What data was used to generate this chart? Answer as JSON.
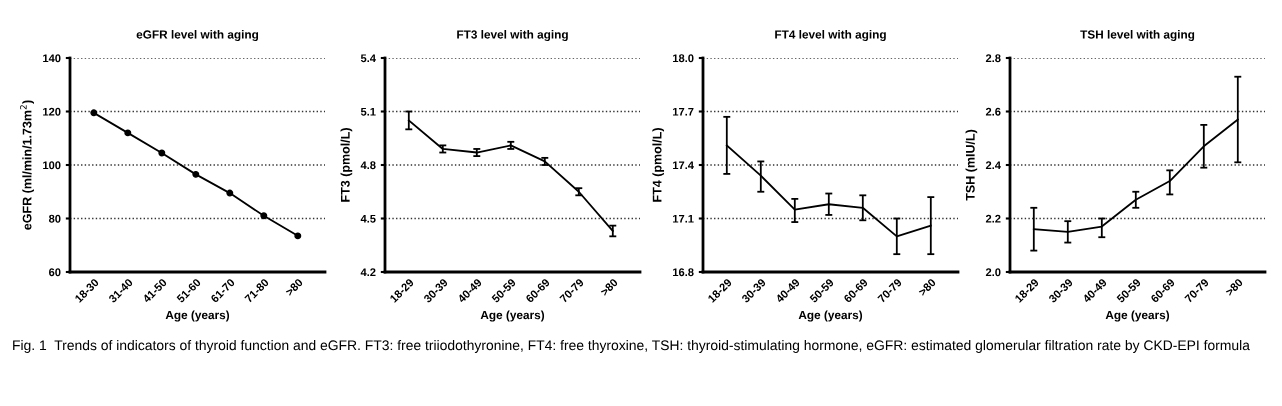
{
  "chart_data": [
    {
      "type": "line",
      "title": "eGFR level with aging",
      "xlabel": "Age (years)",
      "ylabel": "eGFR (ml/min/1.73m$^{2}$)",
      "categories": [
        "18-30",
        "31-40",
        "41-50",
        "51-60",
        "61-70",
        "71-80",
        ">80"
      ],
      "series": [
        {
          "color": "#000000",
          "values": [
            119.5,
            112,
            104.5,
            96.5,
            89.5,
            81,
            73.5
          ]
        }
      ],
      "marker": "circle",
      "ylim": [
        60,
        140
      ],
      "yticks": [
        60,
        80,
        100,
        120,
        140
      ],
      "grid": "y",
      "legend": false,
      "annotations": [
        "Fig. 1  Trends of indicators of thyroid function and eGFR. FT3: free triiodothyronine, FT4: free thyroxine, TSH: thyroid-stimulating hormone, eGFR: estimated glomerular filtration rate by CKD-EPI formula"
      ]
    },
    {
      "type": "line",
      "title": "FT3 level with aging",
      "xlabel": "Age (years)",
      "ylabel": "FT3 (pmol/L)",
      "categories": [
        "18-29",
        "30-39",
        "40-49",
        "50-59",
        "60-69",
        "70-79",
        ">80"
      ],
      "series": [
        {
          "color": "#000000",
          "values": [
            5.05,
            4.89,
            4.87,
            4.91,
            4.82,
            4.65,
            4.43
          ],
          "errors": [
            [
              5.0,
              5.1
            ],
            [
              4.87,
              4.91
            ],
            [
              4.85,
              4.89
            ],
            [
              4.89,
              4.93
            ],
            [
              4.8,
              4.84
            ],
            [
              4.63,
              4.67
            ],
            [
              4.4,
              4.46
            ]
          ]
        }
      ],
      "ylim": [
        4.2,
        5.4
      ],
      "yticks": [
        {
          "value": 4.2,
          "label": "4.2"
        },
        {
          "value": 4.5,
          "label": "4.5"
        },
        {
          "value": 4.8,
          "label": "4.8"
        },
        {
          "value": 5.1,
          "label": "5.1"
        },
        {
          "value": 5.4,
          "label": "5.4"
        }
      ],
      "grid": "y",
      "legend": false
    },
    {
      "type": "line",
      "title": "FT4 level with aging",
      "xlabel": "Age (years)",
      "ylabel": "FT4 (pmol/L)",
      "categories": [
        "18-29",
        "30-39",
        "40-49",
        "50-59",
        "60-69",
        "70-79",
        ">80"
      ],
      "series": [
        {
          "color": "#000000",
          "values": [
            17.51,
            17.34,
            17.15,
            17.18,
            17.16,
            17.0,
            17.06
          ],
          "errors": [
            [
              17.35,
              17.67
            ],
            [
              17.25,
              17.42
            ],
            [
              17.08,
              17.21
            ],
            [
              17.12,
              17.24
            ],
            [
              17.09,
              17.23
            ],
            [
              16.9,
              17.1
            ],
            [
              16.9,
              17.22
            ]
          ]
        }
      ],
      "ylim": [
        16.8,
        18.0
      ],
      "yticks": [
        {
          "value": 16.8,
          "label": "16.8"
        },
        {
          "value": 17.1,
          "label": "17.1"
        },
        {
          "value": 17.4,
          "label": "17.4"
        },
        {
          "value": 17.7,
          "label": "17.7"
        },
        {
          "value": 18.0,
          "label": "18.0"
        }
      ],
      "grid": "y",
      "legend": false
    },
    {
      "type": "line",
      "title": "TSH level with aging",
      "xlabel": "Age (years)",
      "ylabel": "TSH (mIU/L)",
      "categories": [
        "18-29",
        "30-39",
        "40-49",
        "50-59",
        "60-69",
        "70-79",
        ">80"
      ],
      "series": [
        {
          "color": "#000000",
          "values": [
            2.16,
            2.15,
            2.17,
            2.27,
            2.34,
            2.47,
            2.57
          ],
          "errors": [
            [
              2.08,
              2.24
            ],
            [
              2.11,
              2.19
            ],
            [
              2.13,
              2.2
            ],
            [
              2.24,
              2.3
            ],
            [
              2.29,
              2.38
            ],
            [
              2.39,
              2.55
            ],
            [
              2.41,
              2.73
            ]
          ]
        }
      ],
      "ylim": [
        2.0,
        2.8
      ],
      "yticks": [
        {
          "value": 2.0,
          "label": "2.0"
        },
        {
          "value": 2.2,
          "label": "2.2"
        },
        {
          "value": 2.4,
          "label": "2.4"
        },
        {
          "value": 2.6,
          "label": "2.6"
        },
        {
          "value": 2.8,
          "label": "2.8"
        }
      ],
      "grid": "y",
      "legend": false
    }
  ]
}
